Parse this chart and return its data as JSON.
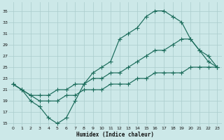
{
  "xlabel": "Humidex (Indice chaleur)",
  "bg_color": "#cce8e8",
  "grid_color": "#aacccc",
  "line_color": "#1a6b5a",
  "xlim": [
    -0.5,
    23.5
  ],
  "ylim": [
    14.5,
    36.5
  ],
  "yticks": [
    15,
    17,
    19,
    21,
    23,
    25,
    27,
    29,
    31,
    33,
    35
  ],
  "xticks": [
    0,
    1,
    2,
    3,
    4,
    5,
    6,
    7,
    8,
    9,
    10,
    11,
    12,
    13,
    14,
    15,
    16,
    17,
    18,
    19,
    20,
    21,
    22,
    23
  ],
  "curve1_x": [
    0,
    1,
    2,
    3,
    4,
    5,
    6,
    7,
    8,
    9,
    10,
    11,
    12,
    13,
    14,
    15,
    16,
    17,
    18,
    19,
    20,
    21,
    22,
    23
  ],
  "curve1_y": [
    22,
    21,
    19,
    18,
    16,
    15,
    16,
    19,
    22,
    24,
    25,
    26,
    30,
    31,
    32,
    34,
    35,
    35,
    34,
    33,
    30,
    28,
    26,
    25
  ],
  "curve2_x": [
    0,
    1,
    2,
    3,
    4,
    5,
    6,
    7,
    8,
    9,
    10,
    11,
    12,
    13,
    14,
    15,
    16,
    17,
    18,
    19,
    20,
    21,
    22,
    23
  ],
  "curve2_y": [
    22,
    21,
    20,
    20,
    20,
    21,
    21,
    22,
    22,
    23,
    23,
    24,
    24,
    25,
    26,
    27,
    28,
    28,
    29,
    30,
    30,
    28,
    27,
    25
  ],
  "curve3_x": [
    0,
    1,
    2,
    3,
    4,
    5,
    6,
    7,
    8,
    9,
    10,
    11,
    12,
    13,
    14,
    15,
    16,
    17,
    18,
    19,
    20,
    21,
    22,
    23
  ],
  "curve3_y": [
    22,
    21,
    20,
    19,
    19,
    19,
    20,
    20,
    21,
    21,
    21,
    22,
    22,
    22,
    23,
    23,
    24,
    24,
    24,
    24,
    25,
    25,
    25,
    25
  ]
}
